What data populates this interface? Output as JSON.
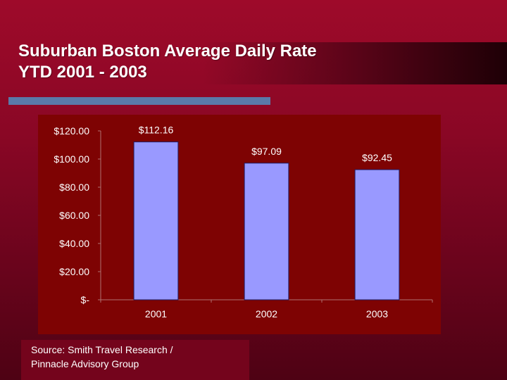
{
  "title": {
    "line1": "Suburban Boston Average Daily Rate",
    "line2": "YTD 2001 - 2003"
  },
  "source": {
    "line1": "Source: Smith Travel Research /",
    "line2": "Pinnacle Advisory Group"
  },
  "colors": {
    "background": "#8a0725",
    "plot_area": "#7e0303",
    "bar": "#9999ff",
    "accent_bar": "#5a7aa8",
    "text": "#ffffff"
  },
  "chart_data": {
    "type": "bar",
    "categories": [
      "2001",
      "2002",
      "2003"
    ],
    "values": [
      112.16,
      97.09,
      92.45
    ],
    "data_labels": [
      "$112.16",
      "$97.09",
      "$92.45"
    ],
    "yticks": [
      0,
      20,
      40,
      60,
      80,
      100,
      120
    ],
    "ytick_labels": [
      "$-",
      "$20.00",
      "$40.00",
      "$60.00",
      "$80.00",
      "$100.00",
      "$120.00"
    ],
    "ylim": [
      0,
      120
    ],
    "title": "",
    "xlabel": "",
    "ylabel": "",
    "grid": false,
    "legend": "none"
  }
}
